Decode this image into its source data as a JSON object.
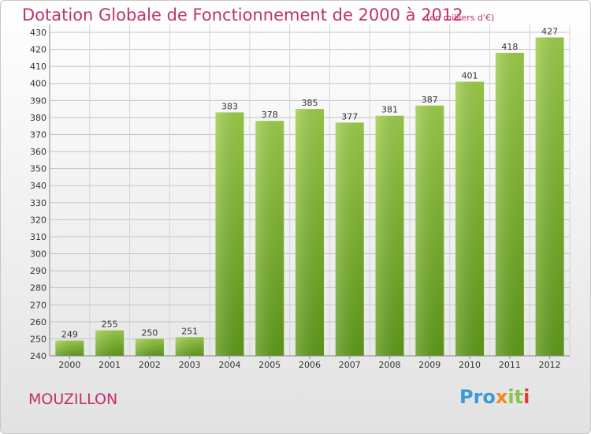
{
  "title": "Dotation Globale de Fonctionnement de 2000 à 2012",
  "unit_note": "(en milliers d'€)",
  "commune": "MOUZILLON",
  "logo": {
    "text": "Proxiti",
    "parts": [
      "Pro",
      "x",
      "it",
      "i"
    ]
  },
  "colors": {
    "title": "#c0306e",
    "bar_top": "#9ccc4a",
    "bar_bottom": "#5e9a1a"
  },
  "chart_data": {
    "type": "bar",
    "title": "Dotation Globale de Fonctionnement de 2000 à 2012",
    "subtitle": "(en milliers d'€)",
    "categories": [
      "2000",
      "2001",
      "2002",
      "2003",
      "2004",
      "2005",
      "2006",
      "2007",
      "2008",
      "2009",
      "2010",
      "2011",
      "2012"
    ],
    "values": [
      249,
      255,
      250,
      251,
      383,
      378,
      385,
      377,
      381,
      387,
      401,
      418,
      427
    ],
    "ylim": [
      240,
      430
    ],
    "yticks": [
      240,
      250,
      260,
      270,
      280,
      290,
      300,
      310,
      320,
      330,
      340,
      350,
      360,
      370,
      380,
      390,
      400,
      410,
      420,
      430
    ],
    "grid": true,
    "data_labels": true,
    "xlabel": "",
    "ylabel": ""
  }
}
